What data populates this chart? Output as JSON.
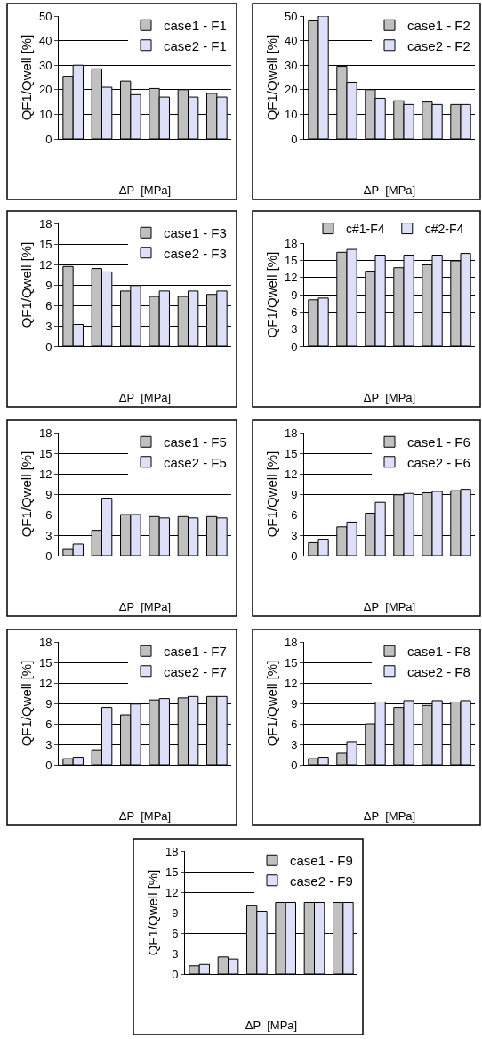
{
  "chart_data": [
    {
      "type": "bar",
      "categories": [
        null,
        null,
        null,
        null,
        null,
        null
      ],
      "xlabel": "ΔP  [MPa]",
      "ylabel": "QF1/Qwell [%]",
      "ylim": [
        0,
        50
      ],
      "yticks": [
        0,
        10,
        20,
        30,
        40,
        50
      ],
      "grid": "y",
      "legend": "top right",
      "tick_labels": "y",
      "series": [
        {
          "name": "case1 - F1",
          "color": "#c0c0c0",
          "values": [
            25.5,
            28.5,
            23.5,
            20.5,
            20,
            18.5
          ]
        },
        {
          "name": "case2 - F1",
          "color": "#dde0f8",
          "values": [
            30,
            21,
            18,
            17,
            17,
            17
          ]
        }
      ]
    },
    {
      "type": "bar",
      "categories": [
        null,
        null,
        null,
        null,
        null,
        null
      ],
      "xlabel": "ΔP  [MPa]",
      "ylabel": "QF1/Qwell [%]",
      "ylim": [
        0,
        50
      ],
      "yticks": [
        0,
        10,
        20,
        30,
        40,
        50
      ],
      "grid": "y",
      "legend": "top right",
      "tick_labels": "y",
      "series": [
        {
          "name": "case1 - F2",
          "color": "#c0c0c0",
          "values": [
            48,
            29.5,
            20,
            15.5,
            15,
            14
          ]
        },
        {
          "name": "case2 - F2",
          "color": "#dde0f8",
          "values": [
            50,
            23,
            16.5,
            14,
            14,
            14
          ]
        }
      ]
    },
    {
      "type": "bar",
      "categories": [
        null,
        null,
        null,
        null,
        null,
        null
      ],
      "xlabel": "ΔP  [MPa]",
      "ylabel": "QF1/Qwell [%]",
      "ylim": [
        0,
        18
      ],
      "yticks": [
        0,
        3,
        6,
        9,
        12,
        15,
        18
      ],
      "grid": "y",
      "legend": "top right",
      "tick_labels": "y",
      "series": [
        {
          "name": "case1 - F3",
          "color": "#c0c0c0",
          "values": [
            11.7,
            11.4,
            8.1,
            7.3,
            7.3,
            7.6
          ]
        },
        {
          "name": "case2 - F3",
          "color": "#dde0f8",
          "values": [
            3.2,
            10.9,
            8.9,
            8.1,
            8.1,
            8.1
          ]
        }
      ]
    },
    {
      "type": "bar",
      "categories": [
        null,
        null,
        null,
        null,
        null,
        null
      ],
      "xlabel": "ΔP  [MPa]",
      "ylabel": "QF1/Qwell [%]",
      "ylim": [
        0,
        18
      ],
      "yticks": [
        0,
        3,
        6,
        9,
        12,
        15,
        18
      ],
      "grid": "y",
      "legend": "top",
      "tick_labels": "y",
      "series": [
        {
          "name": "c#1-F4",
          "color": "#c0c0c0",
          "values": [
            8.1,
            16.4,
            13.1,
            13.7,
            14.2,
            14.9
          ]
        },
        {
          "name": "c#2-F4",
          "color": "#dde0f8",
          "values": [
            8.4,
            16.9,
            15.9,
            15.9,
            15.9,
            16.2
          ]
        }
      ]
    },
    {
      "type": "bar",
      "categories": [
        null,
        null,
        null,
        null,
        null,
        null
      ],
      "xlabel": "ΔP  [MPa]",
      "ylabel": "QF1/Qwell [%]",
      "ylim": [
        0,
        18
      ],
      "yticks": [
        0,
        3,
        6,
        9,
        12,
        15,
        18
      ],
      "grid": "y",
      "legend": "top right",
      "tick_labels": "y",
      "series": [
        {
          "name": "case1 - F5",
          "color": "#c0c0c0",
          "values": [
            0.9,
            3.7,
            6,
            5.7,
            5.7,
            5.7
          ]
        },
        {
          "name": "case2 - F5",
          "color": "#dde0f8",
          "values": [
            1.7,
            8.4,
            6,
            5.5,
            5.5,
            5.5
          ]
        }
      ]
    },
    {
      "type": "bar",
      "categories": [
        null,
        null,
        null,
        null,
        null,
        null
      ],
      "xlabel": "ΔP  [MPa]",
      "ylabel": "QF1/Qwell [%]",
      "ylim": [
        0,
        18
      ],
      "yticks": [
        0,
        3,
        6,
        9,
        12,
        15,
        18
      ],
      "grid": "y",
      "legend": "top right",
      "tick_labels": "y",
      "series": [
        {
          "name": "case1 - F6",
          "color": "#c0c0c0",
          "values": [
            1.9,
            4.2,
            6.2,
            8.9,
            9.2,
            9.5
          ]
        },
        {
          "name": "case2 - F6",
          "color": "#dde0f8",
          "values": [
            2.4,
            4.9,
            7.8,
            9.1,
            9.4,
            9.7
          ]
        }
      ]
    },
    {
      "type": "bar",
      "categories": [
        null,
        null,
        null,
        null,
        null,
        null
      ],
      "xlabel": "ΔP  [MPa]",
      "ylabel": "QF1/Qwell [%]",
      "ylim": [
        0,
        18
      ],
      "yticks": [
        0,
        3,
        6,
        9,
        12,
        15,
        18
      ],
      "grid": "y",
      "legend": "top right",
      "tick_labels": "y",
      "series": [
        {
          "name": "case1 - F7",
          "color": "#c0c0c0",
          "values": [
            0.9,
            2.2,
            7.3,
            9.5,
            9.8,
            10
          ]
        },
        {
          "name": "case2 - F7",
          "color": "#dde0f8",
          "values": [
            1.1,
            8.4,
            8.9,
            9.7,
            10,
            10
          ]
        }
      ]
    },
    {
      "type": "bar",
      "categories": [
        null,
        null,
        null,
        null,
        null,
        null
      ],
      "xlabel": "ΔP  [MPa]",
      "ylabel": "QF1/Qwell [%]",
      "ylim": [
        0,
        18
      ],
      "yticks": [
        0,
        3,
        6,
        9,
        12,
        15,
        18
      ],
      "grid": "y",
      "legend": "top right",
      "tick_labels": "y",
      "series": [
        {
          "name": "case1 - F8",
          "color": "#c0c0c0",
          "values": [
            0.9,
            1.7,
            6,
            8.4,
            8.7,
            9.2
          ]
        },
        {
          "name": "case2 - F8",
          "color": "#dde0f8",
          "values": [
            1.1,
            3.4,
            9.2,
            9.4,
            9.4,
            9.4
          ]
        }
      ]
    },
    {
      "type": "bar",
      "categories": [
        null,
        null,
        null,
        null,
        null,
        null
      ],
      "xlabel": "ΔP  [MPa]",
      "ylabel": "QF1/Qwell [%]",
      "ylim": [
        0,
        18
      ],
      "yticks": [
        0,
        3,
        6,
        9,
        12,
        15,
        18
      ],
      "grid": "y",
      "legend": "top right",
      "tick_labels": "y",
      "series": [
        {
          "name": "case1 - F9",
          "color": "#c0c0c0",
          "values": [
            1.2,
            2.5,
            10,
            10.5,
            10.5,
            10.5
          ]
        },
        {
          "name": "case2 - F9",
          "color": "#dde0f8",
          "values": [
            1.4,
            2.2,
            9.2,
            10.5,
            10.5,
            10.5
          ]
        }
      ]
    }
  ]
}
